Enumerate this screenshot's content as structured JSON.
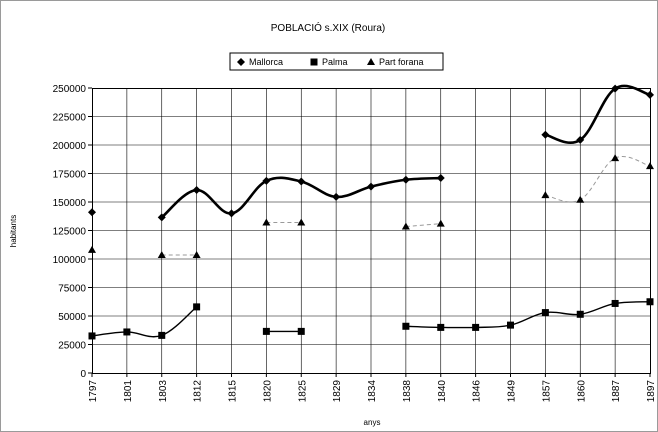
{
  "chart_data": {
    "type": "line",
    "title": "POBLACIÓ s.XIX (Roura)",
    "xlabel": "anys",
    "ylabel": "habitants",
    "categories": [
      "1797",
      "1801",
      "1803",
      "1812",
      "1815",
      "1820",
      "1825",
      "1829",
      "1834",
      "1838",
      "1840",
      "1846",
      "1849",
      "1857",
      "1860",
      "1887",
      "1897"
    ],
    "ylim": [
      0,
      250000
    ],
    "yticks": [
      0,
      25000,
      50000,
      75000,
      100000,
      125000,
      150000,
      175000,
      200000,
      225000,
      250000
    ],
    "ytick_labels": [
      "0",
      "25000",
      "50000",
      "75000",
      "100000",
      "125000",
      "150000",
      "175000",
      "200000",
      "225000",
      "250000"
    ],
    "grid": true,
    "legend_position": "top-center",
    "series": [
      {
        "name": "Mallorca",
        "marker": "diamond",
        "line_style": "solid",
        "line_width": "bold",
        "color": "#000000",
        "values": [
          141000,
          null,
          136500,
          160500,
          140000,
          168500,
          168000,
          154500,
          163500,
          169500,
          171000,
          null,
          null,
          209000,
          204500,
          249500,
          244000
        ]
      },
      {
        "name": "Palma",
        "marker": "square",
        "line_style": "solid",
        "line_width": "normal",
        "color": "#000000",
        "values": [
          32500,
          36000,
          33000,
          58000,
          null,
          36500,
          36500,
          null,
          null,
          41000,
          40000,
          40000,
          42000,
          53000,
          51500,
          61000,
          62500
        ]
      },
      {
        "name": "Part forana",
        "marker": "triangle",
        "line_style": "dashed",
        "line_width": "thin",
        "color": "#9a9a9a",
        "values": [
          108000,
          null,
          103500,
          103500,
          null,
          132000,
          132000,
          null,
          null,
          128500,
          131000,
          null,
          null,
          156000,
          152000,
          188500,
          181500
        ]
      }
    ]
  }
}
